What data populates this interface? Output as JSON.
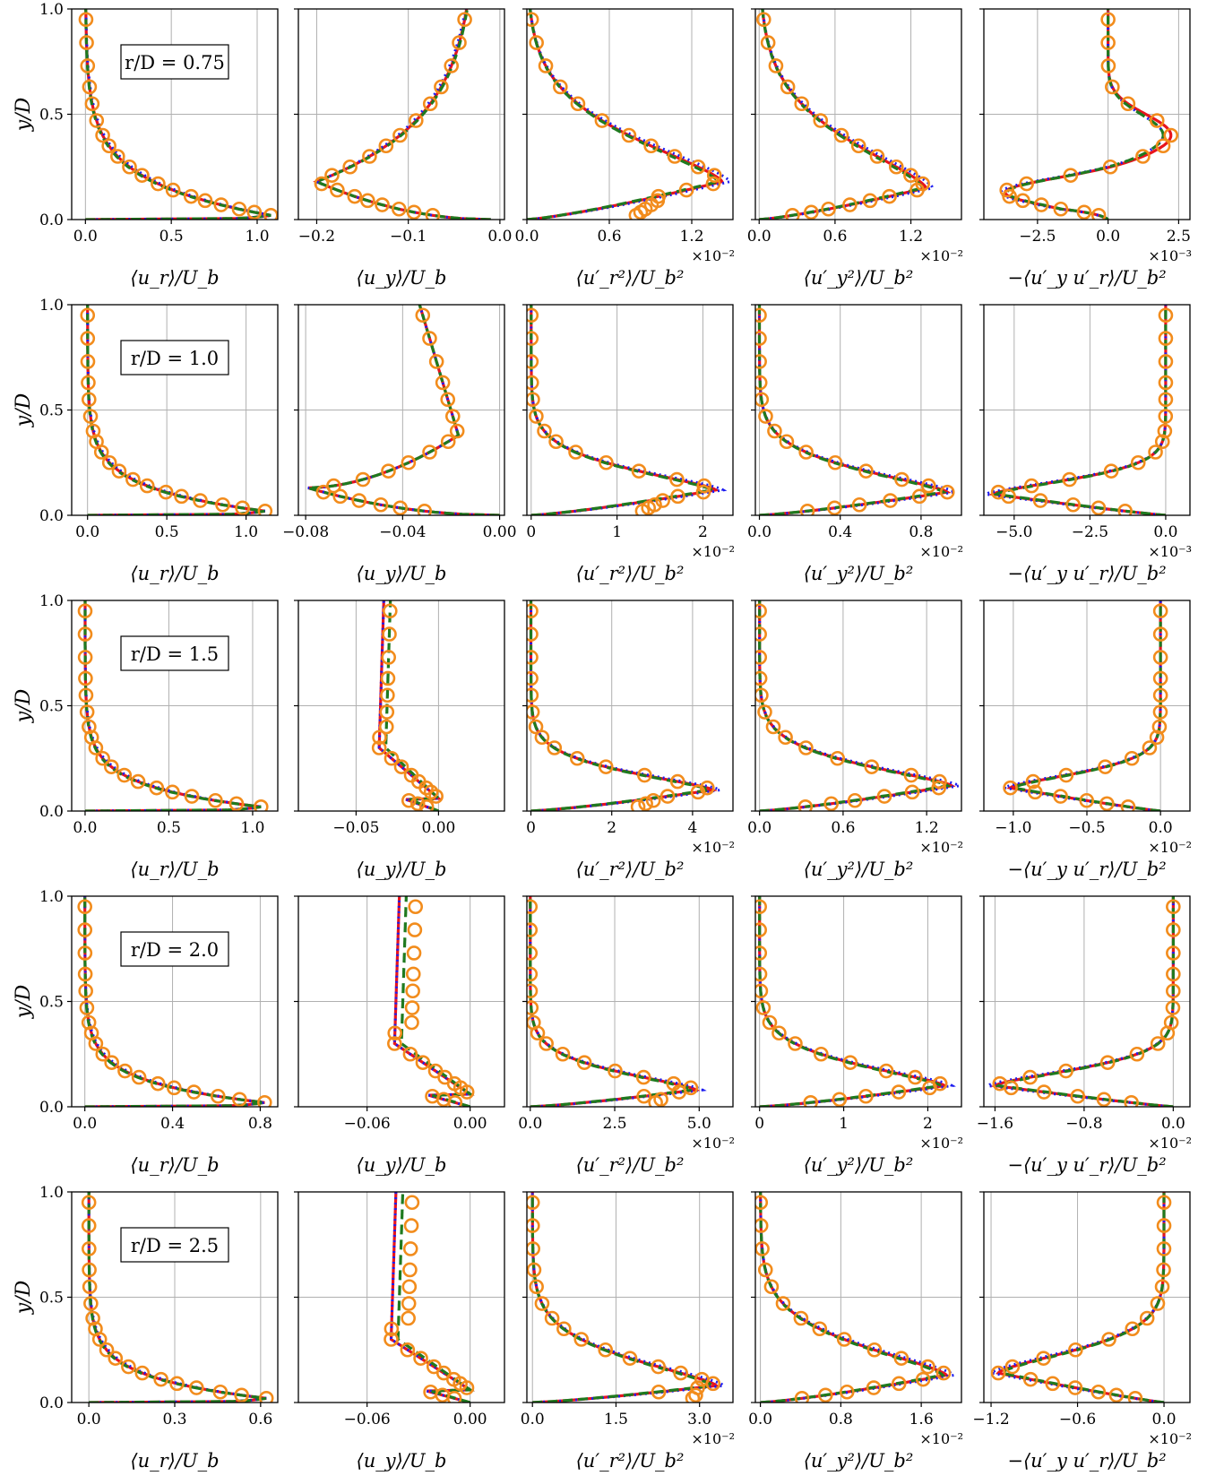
{
  "figure": {
    "ylabel": "y/D",
    "column_xlabels": [
      "⟨u_r⟩/U_b",
      "⟨u_y⟩/U_b",
      "⟨u′_r²⟩/U_b²",
      "⟨u′_y²⟩/U_b²",
      "−⟨u′_y u′_r⟩/U_b²"
    ],
    "y_ticks": [
      "0.0",
      "0.5",
      "1.0"
    ]
  },
  "colors": {
    "red_solid": "#e8141c",
    "blue_dotted": "#1c1cf0",
    "green_dashed": "#1f7a1f",
    "markers": "#f28c1c",
    "grid": "#b0b0b0"
  },
  "chart_data": [
    {
      "type": "line",
      "row_label": "r/D = 0.75",
      "y_range": [
        0,
        1
      ],
      "panels": [
        {
          "xlabel": "⟨u_r⟩/U_b",
          "xlim": [
            -0.08,
            1.12
          ],
          "xticks": [
            0.0,
            0.5,
            1.0
          ],
          "xtick_labels": [
            "0.0",
            "0.5",
            "1.0"
          ],
          "multiplier": "",
          "shape": "jet",
          "peak_x": 1.08,
          "peak_y": 0.02,
          "decay": 0.16,
          "base_x": 0.0
        },
        {
          "xlabel": "⟨u_y⟩/U_b",
          "xlim": [
            -0.22,
            0.005
          ],
          "xticks": [
            -0.2,
            -0.1,
            0.0
          ],
          "xtick_labels": [
            "−0.2",
            "−0.1",
            "0.0"
          ],
          "multiplier": "",
          "shape": "dip",
          "peak_x": -0.2,
          "peak_y": 0.18,
          "decay": 0.3,
          "base_x": -0.01,
          "top_x": -0.025
        },
        {
          "xlabel": "⟨u′_r²⟩/U_b²",
          "xlim": [
            0.0,
            1.5
          ],
          "xticks": [
            0.0,
            0.6,
            1.2
          ],
          "xtick_labels": [
            "0.0",
            "0.6",
            "1.2"
          ],
          "multiplier": "×10⁻²",
          "shape": "peak",
          "peak_x": 1.42,
          "peak_y": 0.18,
          "decay": 0.3,
          "base_x": 0.0,
          "near_wall_x": 0.75
        },
        {
          "xlabel": "⟨u′_y²⟩/U_b²",
          "xlim": [
            -0.03,
            1.6
          ],
          "xticks": [
            0.0,
            0.6,
            1.2
          ],
          "xtick_labels": [
            "0.0",
            "0.6",
            "1.2"
          ],
          "multiplier": "×10⁻²",
          "shape": "peak",
          "peak_x": 1.32,
          "peak_y": 0.15,
          "decay": 0.32,
          "base_x": 0.0
        },
        {
          "xlabel": "−⟨u′_y u′_r⟩/U_b²",
          "xlim": [
            -4.4,
            2.9
          ],
          "xticks": [
            -2.5,
            0.0,
            2.5
          ],
          "xtick_labels": [
            "−2.5",
            "0.0",
            "2.5"
          ],
          "multiplier": "×10⁻³",
          "shape": "shear",
          "peak_x": -3.7,
          "peak_y": 0.13,
          "pos_x": 2.1,
          "pos_y": 0.4,
          "base_x": 0.0
        }
      ]
    },
    {
      "type": "line",
      "row_label": "r/D = 1.0",
      "y_range": [
        0,
        1
      ],
      "panels": [
        {
          "xlabel": "⟨u_r⟩/U_b",
          "xlim": [
            -0.1,
            1.2
          ],
          "xticks": [
            0.0,
            0.5,
            1.0
          ],
          "xtick_labels": [
            "0.0",
            "0.5",
            "1.0"
          ],
          "multiplier": "",
          "shape": "jet",
          "peak_x": 1.12,
          "peak_y": 0.02,
          "decay": 0.11,
          "base_x": 0.0
        },
        {
          "xlabel": "⟨u_y⟩/U_b",
          "xlim": [
            -0.083,
            0.002
          ],
          "xticks": [
            -0.08,
            -0.04,
            0.0
          ],
          "xtick_labels": [
            "−0.08",
            "−0.04",
            "0.00"
          ],
          "multiplier": "",
          "shape": "dip2",
          "peak_x": -0.079,
          "peak_y": 0.13,
          "mid_x": -0.017,
          "mid_y": 0.38,
          "top_x": -0.033
        },
        {
          "xlabel": "⟨u′_r²⟩/U_b²",
          "xlim": [
            -0.05,
            2.35
          ],
          "xticks": [
            0,
            1,
            2
          ],
          "xtick_labels": [
            "0",
            "1",
            "2"
          ],
          "multiplier": "×10⁻²",
          "shape": "peak",
          "peak_x": 2.15,
          "peak_y": 0.12,
          "decay": 0.14,
          "base_x": 0.0,
          "near_wall_x": 1.2
        },
        {
          "xlabel": "⟨u′_y²⟩/U_b²",
          "xlim": [
            -0.02,
            1.0
          ],
          "xticks": [
            0.0,
            0.4,
            0.8
          ],
          "xtick_labels": [
            "0.0",
            "0.4",
            "0.8"
          ],
          "multiplier": "×10⁻²",
          "shape": "peak",
          "peak_x": 0.93,
          "peak_y": 0.11,
          "decay": 0.15,
          "base_x": 0.0
        },
        {
          "xlabel": "−⟨u′_y u′_r⟩/U_b²",
          "xlim": [
            -6.0,
            0.8
          ],
          "xticks": [
            -5.0,
            -2.5,
            0.0
          ],
          "xtick_labels": [
            "−5.0",
            "−2.5",
            "0.0"
          ],
          "multiplier": "×10⁻³",
          "shape": "trough",
          "peak_x": -5.7,
          "peak_y": 0.1,
          "decay": 0.1,
          "base_x": 0.0
        }
      ]
    },
    {
      "type": "line",
      "row_label": "r/D = 1.5",
      "y_range": [
        0,
        1
      ],
      "panels": [
        {
          "xlabel": "⟨u_r⟩/U_b",
          "xlim": [
            -0.08,
            1.15
          ],
          "xticks": [
            0.0,
            0.5,
            1.0
          ],
          "xtick_labels": [
            "0.0",
            "0.5",
            "1.0"
          ],
          "multiplier": "",
          "shape": "jet",
          "peak_x": 1.05,
          "peak_y": 0.02,
          "decay": 0.1,
          "base_x": 0.0
        },
        {
          "xlabel": "⟨u_y⟩/U_b",
          "xlim": [
            -0.085,
            0.04
          ],
          "xticks": [
            -0.05,
            0.0
          ],
          "xtick_labels": [
            "−0.05",
            "0.00"
          ],
          "multiplier": "",
          "shape": "flat",
          "base_x": -0.036,
          "top_x": -0.036,
          "bottom_x": 0.0
        },
        {
          "xlabel": "⟨u′_r²⟩/U_b²",
          "xlim": [
            -0.1,
            5.0
          ],
          "xticks": [
            0,
            2,
            4
          ],
          "xtick_labels": [
            "0",
            "2",
            "4"
          ],
          "multiplier": "×10⁻²",
          "shape": "peak",
          "peak_x": 4.5,
          "peak_y": 0.1,
          "decay": 0.12,
          "base_x": 0.0,
          "near_wall_x": 2.4
        },
        {
          "xlabel": "⟨u′_y²⟩/U_b²",
          "xlim": [
            -0.03,
            1.45
          ],
          "xticks": [
            0.0,
            0.6,
            1.2
          ],
          "xtick_labels": [
            "0.0",
            "0.6",
            "1.2"
          ],
          "multiplier": "×10⁻²",
          "shape": "peak",
          "peak_x": 1.38,
          "peak_y": 0.12,
          "decay": 0.14,
          "base_x": 0.0
        },
        {
          "xlabel": "−⟨u′_y u′_r⟩/U_b²",
          "xlim": [
            -1.2,
            0.2
          ],
          "xticks": [
            -1.0,
            -0.5,
            0.0
          ],
          "xtick_labels": [
            "−1.0",
            "−0.5",
            "0.0"
          ],
          "multiplier": "×10⁻²",
          "shape": "trough",
          "peak_x": -1.02,
          "peak_y": 0.11,
          "decay": 0.1,
          "base_x": 0.0
        }
      ]
    },
    {
      "type": "line",
      "row_label": "r/D = 2.0",
      "y_range": [
        0,
        1
      ],
      "panels": [
        {
          "xlabel": "⟨u_r⟩/U_b",
          "xlim": [
            -0.06,
            0.88
          ],
          "xticks": [
            0.0,
            0.4,
            0.8
          ],
          "xtick_labels": [
            "0.0",
            "0.4",
            "0.8"
          ],
          "multiplier": "",
          "shape": "jet",
          "peak_x": 0.82,
          "peak_y": 0.02,
          "decay": 0.1,
          "base_x": 0.0
        },
        {
          "xlabel": "⟨u_y⟩/U_b",
          "xlim": [
            -0.1,
            0.02
          ],
          "xticks": [
            -0.06,
            0.0
          ],
          "xtick_labels": [
            "−0.06",
            "0.00"
          ],
          "multiplier": "",
          "shape": "flat",
          "base_x": -0.044,
          "top_x": -0.044,
          "bottom_x": 0.0
        },
        {
          "xlabel": "⟨u′_r²⟩/U_b²",
          "xlim": [
            -0.1,
            6.0
          ],
          "xticks": [
            0.0,
            2.5,
            5.0
          ],
          "xtick_labels": [
            "0.0",
            "2.5",
            "5.0"
          ],
          "multiplier": "×10⁻²",
          "shape": "peak",
          "peak_x": 4.9,
          "peak_y": 0.08,
          "decay": 0.12,
          "base_x": 0.0,
          "near_wall_x": 3.5
        },
        {
          "xlabel": "⟨u′_y²⟩/U_b²",
          "xlim": [
            -0.05,
            2.4
          ],
          "xticks": [
            0,
            1,
            2
          ],
          "xtick_labels": [
            "0",
            "1",
            "2"
          ],
          "multiplier": "×10⁻²",
          "shape": "peak",
          "peak_x": 2.2,
          "peak_y": 0.1,
          "decay": 0.14,
          "base_x": 0.0
        },
        {
          "xlabel": "−⟨u′_y u′_r⟩/U_b²",
          "xlim": [
            -1.7,
            0.15
          ],
          "xticks": [
            -1.6,
            -0.8,
            0.0
          ],
          "xtick_labels": [
            "−1.6",
            "−0.8",
            "0.0"
          ],
          "multiplier": "×10⁻²",
          "shape": "trough",
          "peak_x": -1.6,
          "peak_y": 0.1,
          "decay": 0.11,
          "base_x": 0.0
        }
      ]
    },
    {
      "type": "line",
      "row_label": "r/D = 2.5",
      "y_range": [
        0,
        1
      ],
      "panels": [
        {
          "xlabel": "⟨u_r⟩/U_b",
          "xlim": [
            -0.06,
            0.66
          ],
          "xticks": [
            0.0,
            0.3,
            0.6
          ],
          "xtick_labels": [
            "0.0",
            "0.3",
            "0.6"
          ],
          "multiplier": "",
          "shape": "jet",
          "peak_x": 0.62,
          "peak_y": 0.02,
          "decay": 0.1,
          "base_x": 0.0
        },
        {
          "xlabel": "⟨u_y⟩/U_b",
          "xlim": [
            -0.1,
            0.02
          ],
          "xticks": [
            -0.06,
            0.0
          ],
          "xtick_labels": [
            "−0.06",
            "0.00"
          ],
          "multiplier": "",
          "shape": "flat",
          "base_x": -0.046,
          "top_x": -0.046,
          "bottom_x": 0.0
        },
        {
          "xlabel": "⟨u′_r²⟩/U_b²",
          "xlim": [
            -0.1,
            3.6
          ],
          "xticks": [
            0.0,
            1.5,
            3.0
          ],
          "xtick_labels": [
            "0.0",
            "1.5",
            "3.0"
          ],
          "multiplier": "×10⁻²",
          "shape": "peak",
          "peak_x": 3.3,
          "peak_y": 0.08,
          "decay": 0.18,
          "base_x": 0.0,
          "near_wall_x": 2.8
        },
        {
          "xlabel": "⟨u′_y²⟩/U_b²",
          "xlim": [
            -0.05,
            2.0
          ],
          "xticks": [
            0.0,
            0.8,
            1.6
          ],
          "xtick_labels": [
            "0.0",
            "0.8",
            "1.6"
          ],
          "multiplier": "×10⁻²",
          "shape": "peak",
          "peak_x": 1.85,
          "peak_y": 0.13,
          "decay": 0.2,
          "base_x": 0.0
        },
        {
          "xlabel": "−⟨u′_y u′_r⟩/U_b²",
          "xlim": [
            -1.25,
            0.18
          ],
          "xticks": [
            -1.2,
            -0.6,
            0.0
          ],
          "xtick_labels": [
            "−1.2",
            "−0.6",
            "0.0"
          ],
          "multiplier": "×10⁻²",
          "shape": "trough",
          "peak_x": -1.15,
          "peak_y": 0.14,
          "decay": 0.15,
          "base_x": 0.0
        }
      ]
    }
  ]
}
